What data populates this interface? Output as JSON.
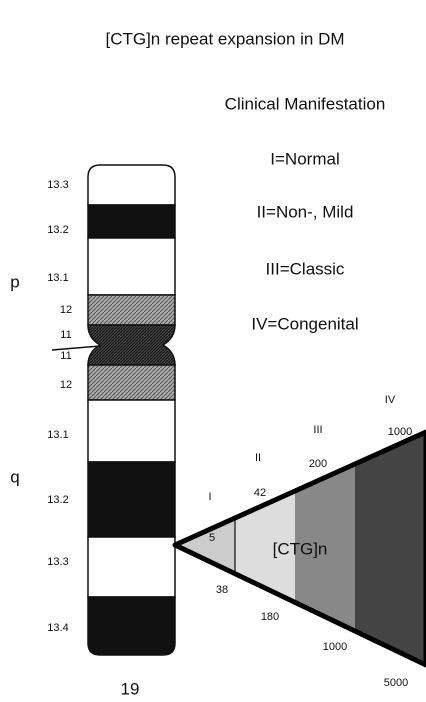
{
  "title": "[CTG]n repeat expansion in DM",
  "legend": {
    "heading": "Clinical Manifestation",
    "items": [
      "I=Normal",
      "II=Non-, Mild",
      "III=Classic",
      "IV=Congenital"
    ]
  },
  "chromosome": {
    "number": "19",
    "arms": [
      "p",
      "q"
    ],
    "bands": [
      "13.3",
      "13.2",
      "13.1",
      "12",
      "11",
      "11",
      "12",
      "13.1",
      "13.2",
      "13.3",
      "13.4"
    ]
  },
  "expansion": {
    "label": "[CTG]n",
    "classes": [
      "I",
      "II",
      "III",
      "IV"
    ],
    "upper_bounds": [
      "5",
      "42",
      "200",
      "1000"
    ],
    "lower_bounds": [
      "38",
      "180",
      "1000",
      "5000"
    ]
  }
}
